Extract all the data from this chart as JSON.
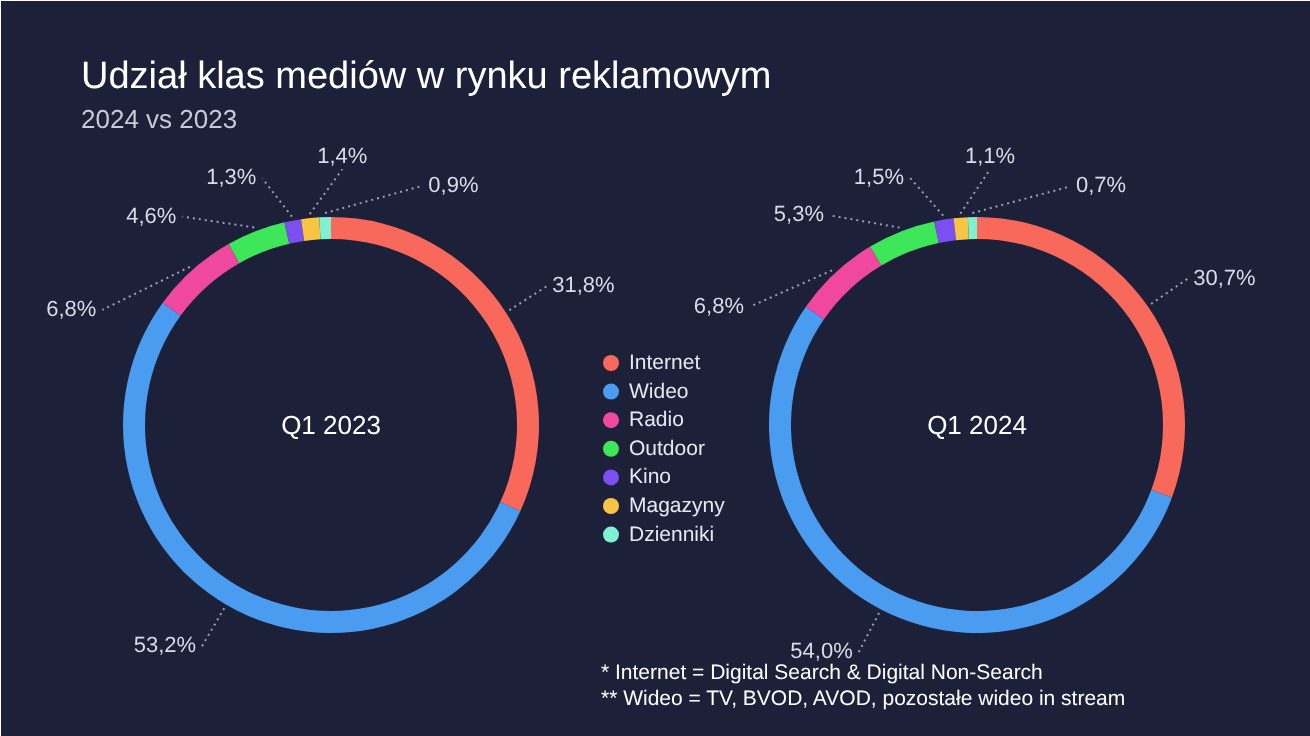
{
  "chart_data": [
    {
      "type": "donut",
      "title": "Udział klas mediów w rynku reklamowym",
      "subtitle": "2024 vs 2023",
      "categories": [
        "Internet",
        "Wideo",
        "Radio",
        "Outdoor",
        "Kino",
        "Magazyny",
        "Dzienniki"
      ],
      "values": [
        31.8,
        53.2,
        6.8,
        4.6,
        1.3,
        1.4,
        0.9
      ],
      "colors": [
        "#f9695b",
        "#4a9cf0",
        "#f0489f",
        "#3ee65a",
        "#7b4ff0",
        "#f7c443",
        "#7ff0d0"
      ],
      "value_labels": [
        "31,8%",
        "53,2%",
        "6,8%",
        "4,6%",
        "1,3%",
        "1,4%",
        "0,9%"
      ],
      "legend": "right",
      "annotations": [
        "Q1 2023"
      ]
    },
    {
      "type": "donut",
      "values": [
        30.7,
        54.0,
        6.8,
        5.3,
        1.5,
        1.1,
        0.7
      ],
      "colors": [
        "#f9695b",
        "#4a9cf0",
        "#f0489f",
        "#3ee65a",
        "#7b4ff0",
        "#f7c443",
        "#7ff0d0"
      ],
      "value_labels": [
        "30,7%",
        "54,0%",
        "6,8%",
        "5,3%",
        "1,5%",
        "1,1%",
        "0,7%"
      ],
      "annotations": [
        "Q1 2024",
        "* Internet = Digital Search & Digital Non-Search",
        "** Wideo = TV, BVOD, AVOD, pozostałe wideo in stream"
      ]
    }
  ]
}
